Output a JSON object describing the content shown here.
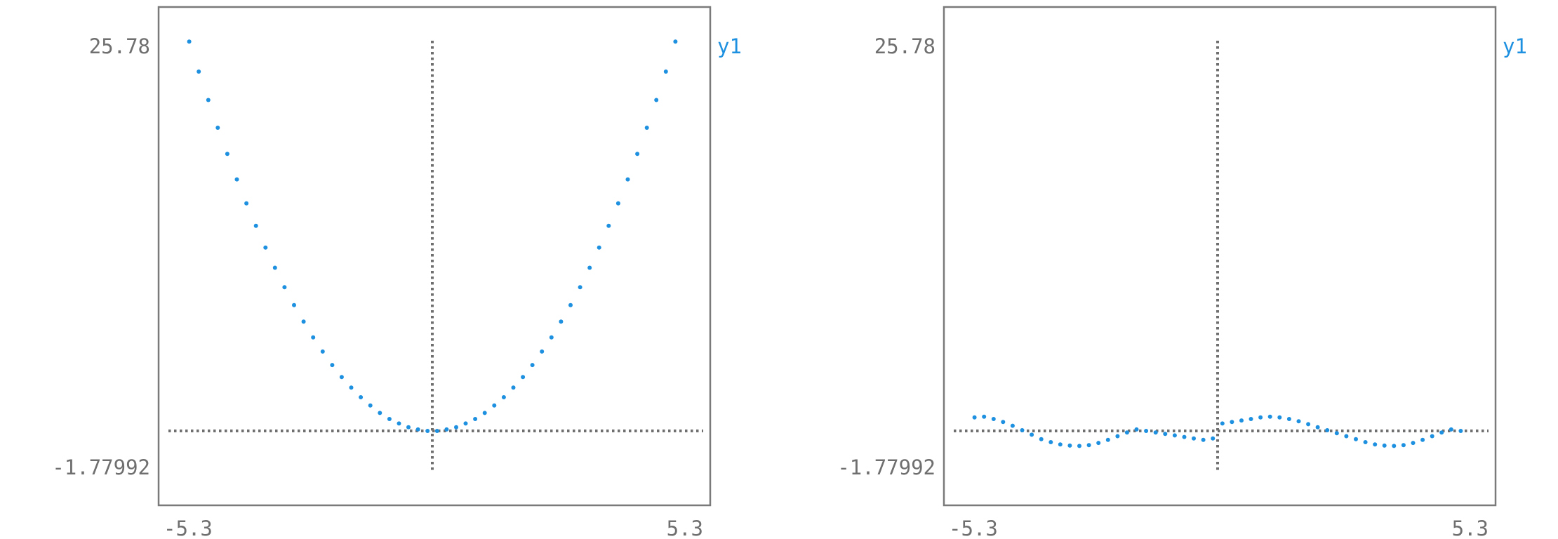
{
  "colors": {
    "series": "#1e90e0",
    "axis": "#6f6f6f",
    "frame": "#7a7a7a"
  },
  "chart_data": [
    {
      "type": "scatter",
      "title": "",
      "xlabel": "",
      "ylabel": "",
      "xlim": [
        -5.3,
        5.3
      ],
      "ylim": [
        -1.77992,
        25.78
      ],
      "x_ticks": [
        "-5.3",
        "5.3"
      ],
      "y_ticks": [
        "25.78",
        "-1.77992"
      ],
      "legend": {
        "position": "right-top",
        "entries": [
          "y1"
        ]
      },
      "grid": false,
      "zero_axes": true,
      "series": [
        {
          "name": "y1",
          "x": [
            -5.1,
            -4.9,
            -4.7,
            -4.5,
            -4.3,
            -4.1,
            -3.9,
            -3.7,
            -3.5,
            -3.3,
            -3.1,
            -2.9,
            -2.7,
            -2.5,
            -2.3,
            -2.1,
            -1.9,
            -1.7,
            -1.5,
            -1.3,
            -1.1,
            -0.9,
            -0.7,
            -0.5,
            -0.3,
            -0.1,
            0.1,
            0.3,
            0.5,
            0.7,
            0.9,
            1.1,
            1.3,
            1.5,
            1.7,
            1.9,
            2.1,
            2.3,
            2.5,
            2.7,
            2.9,
            3.1,
            3.3,
            3.5,
            3.7,
            3.9,
            4.1,
            4.3,
            4.5,
            4.7,
            4.9,
            5.1
          ],
          "y": [
            26.0,
            24.0,
            22.1,
            20.25,
            18.5,
            16.8,
            15.2,
            13.7,
            12.25,
            10.9,
            9.6,
            8.4,
            7.3,
            6.25,
            5.3,
            4.4,
            3.6,
            2.9,
            2.25,
            1.7,
            1.2,
            0.8,
            0.5,
            0.25,
            0.1,
            0.0,
            0.0,
            0.1,
            0.25,
            0.5,
            0.8,
            1.2,
            1.7,
            2.25,
            2.9,
            3.6,
            4.4,
            5.3,
            6.25,
            7.3,
            8.4,
            9.6,
            10.9,
            12.25,
            13.7,
            15.2,
            16.8,
            18.5,
            20.25,
            22.1,
            24.0,
            26.0
          ]
        }
      ]
    },
    {
      "type": "scatter",
      "title": "",
      "xlabel": "",
      "ylabel": "",
      "xlim": [
        -5.3,
        5.3
      ],
      "ylim": [
        -1.77992,
        25.78
      ],
      "x_ticks": [
        "-5.3",
        "5.3"
      ],
      "y_ticks": [
        "25.78",
        "-1.77992"
      ],
      "legend": {
        "position": "right-top",
        "entries": [
          "y1"
        ]
      },
      "grid": false,
      "zero_axes": true,
      "series": [
        {
          "name": "y1",
          "x": [
            -5.1,
            -4.9,
            -4.7,
            -4.5,
            -4.3,
            -4.1,
            -3.9,
            -3.7,
            -3.5,
            -3.3,
            -3.1,
            -2.9,
            -2.7,
            -2.5,
            -2.3,
            -2.1,
            -1.9,
            -1.7,
            -1.5,
            -1.3,
            -1.1,
            -0.9,
            -0.7,
            -0.5,
            -0.3,
            -0.1,
            0.1,
            0.3,
            0.5,
            0.7,
            0.9,
            1.1,
            1.3,
            1.5,
            1.7,
            1.9,
            2.1,
            2.3,
            2.5,
            2.7,
            2.9,
            3.1,
            3.3,
            3.5,
            3.7,
            3.9,
            4.1,
            4.3,
            4.5,
            4.7,
            4.9,
            5.1
          ],
          "y": [
            0.9,
            0.95,
            0.8,
            0.6,
            0.35,
            0.05,
            -0.25,
            -0.55,
            -0.75,
            -0.9,
            -0.98,
            -1.0,
            -0.95,
            -0.8,
            -0.6,
            -0.35,
            -0.1,
            0.1,
            0.0,
            -0.1,
            -0.2,
            -0.3,
            -0.4,
            -0.5,
            -0.6,
            -0.5,
            0.5,
            0.6,
            0.7,
            0.8,
            0.9,
            0.95,
            0.9,
            0.8,
            0.65,
            0.45,
            0.25,
            0.05,
            -0.15,
            -0.35,
            -0.55,
            -0.75,
            -0.9,
            -0.98,
            -1.0,
            -0.95,
            -0.8,
            -0.6,
            -0.35,
            -0.1,
            0.1,
            0.0
          ]
        }
      ]
    }
  ]
}
